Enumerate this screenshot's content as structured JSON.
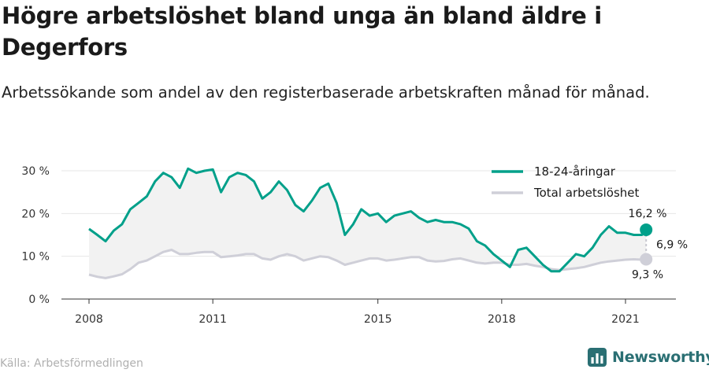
{
  "title": "Högre arbetslöshet bland unga än bland äldre i Degerfors",
  "subtitle": "Arbetssökande som andel av den registerbaserade arbetskraften månad för månad.",
  "source": "Källa: Arbetsförmedlingen",
  "logo_text": "Newsworthy",
  "colors": {
    "youth": "#00a08a",
    "total": "#cfcfd8",
    "band": "#f2f2f2",
    "logo": "#2a6f73"
  },
  "chart_data": {
    "type": "line",
    "ylim": [
      0,
      30
    ],
    "yticks": [
      0,
      10,
      20,
      30
    ],
    "ytick_labels": [
      "0 %",
      "10 %",
      "20 %",
      "30 %"
    ],
    "xlim": [
      2008.0,
      2022.3
    ],
    "xticks": [
      2008,
      2011,
      2015,
      2018,
      2021
    ],
    "xtick_labels": [
      "2008",
      "2011",
      "2015",
      "2018",
      "2021"
    ],
    "legend_position": "top-right",
    "grid": "horizontal",
    "series": [
      {
        "name": "18-24-åringar",
        "color": "#00a08a",
        "x": [
          2008.0,
          2008.2,
          2008.4,
          2008.6,
          2008.8,
          2009.0,
          2009.2,
          2009.4,
          2009.6,
          2009.8,
          2010.0,
          2010.2,
          2010.4,
          2010.6,
          2010.8,
          2011.0,
          2011.2,
          2011.4,
          2011.6,
          2011.8,
          2012.0,
          2012.2,
          2012.4,
          2012.6,
          2012.8,
          2013.0,
          2013.2,
          2013.4,
          2013.6,
          2013.8,
          2014.0,
          2014.2,
          2014.4,
          2014.6,
          2014.8,
          2015.0,
          2015.2,
          2015.4,
          2015.6,
          2015.8,
          2016.0,
          2016.2,
          2016.4,
          2016.6,
          2016.8,
          2017.0,
          2017.2,
          2017.4,
          2017.6,
          2017.8,
          2018.0,
          2018.2,
          2018.4,
          2018.6,
          2018.8,
          2019.0,
          2019.2,
          2019.4,
          2019.6,
          2019.8,
          2020.0,
          2020.2,
          2020.4,
          2020.6,
          2020.8,
          2021.0,
          2021.2,
          2021.4,
          2021.5
        ],
        "values": [
          16.4,
          15.0,
          13.5,
          16.0,
          17.5,
          21.0,
          22.5,
          24.0,
          27.5,
          29.5,
          28.5,
          26.0,
          30.5,
          29.5,
          30.0,
          30.3,
          25.0,
          28.5,
          29.5,
          29.0,
          27.5,
          23.5,
          25.0,
          27.5,
          25.5,
          22.0,
          20.5,
          23.0,
          26.0,
          27.0,
          22.5,
          15.0,
          17.5,
          21.0,
          19.5,
          20.0,
          18.0,
          19.5,
          20.0,
          20.5,
          19.0,
          18.0,
          18.5,
          18.0,
          18.0,
          17.5,
          16.5,
          13.5,
          12.5,
          10.5,
          9.0,
          7.5,
          11.5,
          12.0,
          10.0,
          8.0,
          6.5,
          6.5,
          8.5,
          10.5,
          10.0,
          12.0,
          15.0,
          17.0,
          15.5,
          15.5,
          15.0,
          15.0,
          16.2
        ]
      },
      {
        "name": "Total arbetslöshet",
        "color": "#cfcfd8",
        "x": [
          2008.0,
          2008.2,
          2008.4,
          2008.6,
          2008.8,
          2009.0,
          2009.2,
          2009.4,
          2009.6,
          2009.8,
          2010.0,
          2010.2,
          2010.4,
          2010.6,
          2010.8,
          2011.0,
          2011.2,
          2011.4,
          2011.6,
          2011.8,
          2012.0,
          2012.2,
          2012.4,
          2012.6,
          2012.8,
          2013.0,
          2013.2,
          2013.4,
          2013.6,
          2013.8,
          2014.0,
          2014.2,
          2014.4,
          2014.6,
          2014.8,
          2015.0,
          2015.2,
          2015.4,
          2015.6,
          2015.8,
          2016.0,
          2016.2,
          2016.4,
          2016.6,
          2016.8,
          2017.0,
          2017.2,
          2017.4,
          2017.6,
          2017.8,
          2018.0,
          2018.2,
          2018.4,
          2018.6,
          2018.8,
          2019.0,
          2019.2,
          2019.4,
          2019.6,
          2019.8,
          2020.0,
          2020.2,
          2020.4,
          2020.6,
          2020.8,
          2021.0,
          2021.2,
          2021.4,
          2021.5
        ],
        "values": [
          5.7,
          5.2,
          4.9,
          5.3,
          5.8,
          7.0,
          8.5,
          9.0,
          10.0,
          11.0,
          11.5,
          10.5,
          10.5,
          10.8,
          11.0,
          11.0,
          9.8,
          10.0,
          10.2,
          10.5,
          10.5,
          9.5,
          9.2,
          10.0,
          10.5,
          10.0,
          9.0,
          9.5,
          10.0,
          9.8,
          9.0,
          8.0,
          8.5,
          9.0,
          9.5,
          9.5,
          9.0,
          9.2,
          9.5,
          9.8,
          9.8,
          9.0,
          8.8,
          8.9,
          9.3,
          9.5,
          9.0,
          8.5,
          8.3,
          8.5,
          8.5,
          8.0,
          8.0,
          8.2,
          7.8,
          7.5,
          7.0,
          6.8,
          7.0,
          7.2,
          7.5,
          8.0,
          8.5,
          8.8,
          9.0,
          9.2,
          9.3,
          9.2,
          9.3
        ]
      }
    ],
    "annotations": [
      {
        "text": "16,2 %",
        "series": "18-24-åringar",
        "x": 2021.5,
        "y": 16.2
      },
      {
        "text": "9,3 %",
        "series": "Total arbetslöshet",
        "x": 2021.5,
        "y": 9.3
      },
      {
        "text": "6,9 %",
        "type": "difference"
      }
    ]
  }
}
